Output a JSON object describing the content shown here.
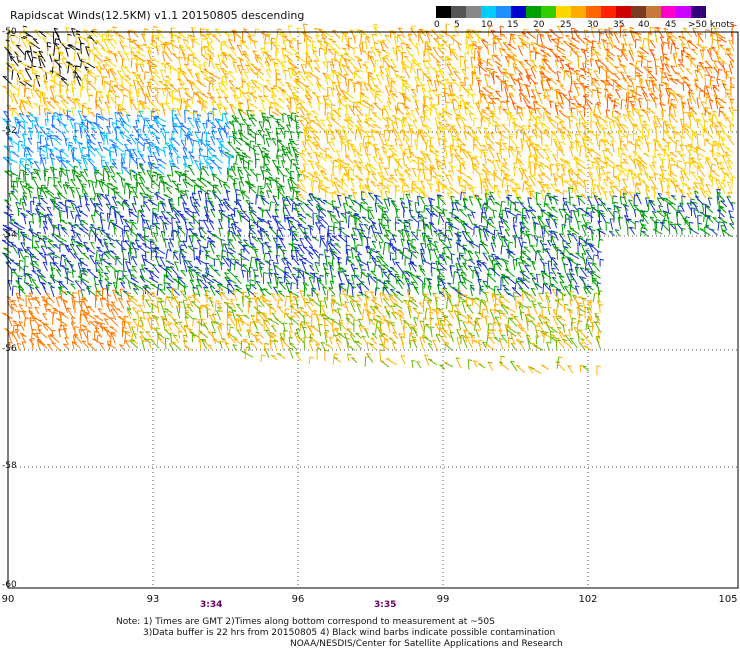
{
  "title": "Rapidscat Winds(12.5KM) v1.1 20150805 descending",
  "legend": {
    "labels": [
      "0",
      "5",
      "10",
      "15",
      "20",
      "25",
      "30",
      "35",
      "40",
      "45",
      ">50 knots"
    ],
    "colors": [
      "#000000",
      "#555555",
      "#888888",
      "#00ccff",
      "#1e90ff",
      "#0000cc",
      "#00a000",
      "#33cc00",
      "#ffd700",
      "#ffaa00",
      "#ff6600",
      "#ff2200",
      "#cc0000",
      "#7a3b1f",
      "#c47a3a",
      "#ff00cc",
      "#cc00ff",
      "#330077"
    ]
  },
  "axes": {
    "x_ticks": [
      "90",
      "93",
      "96",
      "99",
      "102",
      "105"
    ],
    "y_ticks": [
      "-50",
      "-52",
      "-54",
      "-56",
      "-58",
      "-60"
    ]
  },
  "times": [
    "3:34",
    "3:35"
  ],
  "notes": [
    "Note: 1) Times are GMT 2)Times along bottom correspond to measurement at ~50S",
    "3)Data buffer is 22 hrs from 20150805 4) Black wind barbs indicate possible contamination",
    "NOAA/NESDIS/Center for Satellite Applications and Research"
  ]
}
